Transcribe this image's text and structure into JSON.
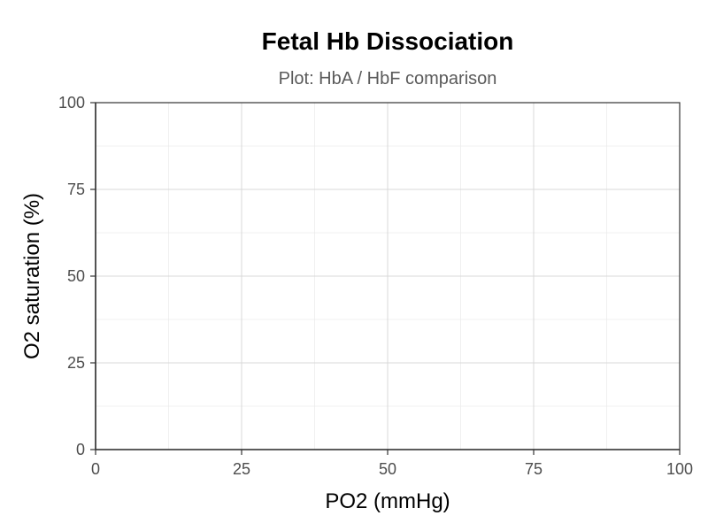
{
  "chart_data": {
    "type": "line",
    "title": "Fetal Hb Dissociation",
    "subtitle": "Plot: HbA / HbF comparison",
    "xlabel": "PO2 (mmHg)",
    "ylabel": "O2 saturation (%)",
    "xlim": [
      0,
      100
    ],
    "ylim": [
      0,
      100
    ],
    "x_ticks": [
      0,
      25,
      50,
      75,
      100
    ],
    "y_ticks": [
      0,
      25,
      50,
      75,
      100
    ],
    "x_tick_labels": [
      "0",
      "25",
      "50",
      "75",
      "100"
    ],
    "y_tick_labels": [
      "0",
      "25",
      "50",
      "75",
      "100"
    ],
    "grid": true,
    "minor_grid": true,
    "series": [],
    "colors": {
      "grid_major": "#d9d9d9",
      "grid_minor": "#ececec",
      "axis": "#333333",
      "tick_text": "#4d4d4d",
      "subtitle": "#5a5a5a"
    }
  }
}
